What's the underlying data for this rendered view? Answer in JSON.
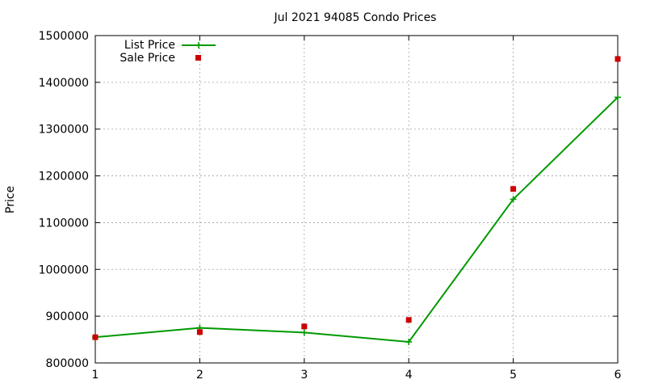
{
  "chart_data": {
    "type": "line",
    "title": "Jul 2021 94085 Condo Prices",
    "xlabel": "",
    "ylabel": "Price",
    "x": [
      1,
      2,
      3,
      4,
      5,
      6
    ],
    "x_ticks": [
      "1",
      "2",
      "3",
      "4",
      "5",
      "6"
    ],
    "y_ticks": [
      "800000",
      "900000",
      "1000000",
      "1100000",
      "1200000",
      "1300000",
      "1400000",
      "1500000"
    ],
    "xlim": [
      1,
      6
    ],
    "ylim": [
      800000,
      1500000
    ],
    "grid": true,
    "legend_position": "top-left",
    "series": [
      {
        "name": "List Price",
        "style": "line-with-plus-markers",
        "color": "#009900",
        "values": [
          855000,
          875000,
          865000,
          845000,
          1150000,
          1368000
        ]
      },
      {
        "name": "Sale Price",
        "style": "square-markers",
        "color": "#cc0000",
        "values": [
          855000,
          866000,
          878000,
          892000,
          1172000,
          1450000
        ]
      }
    ]
  }
}
